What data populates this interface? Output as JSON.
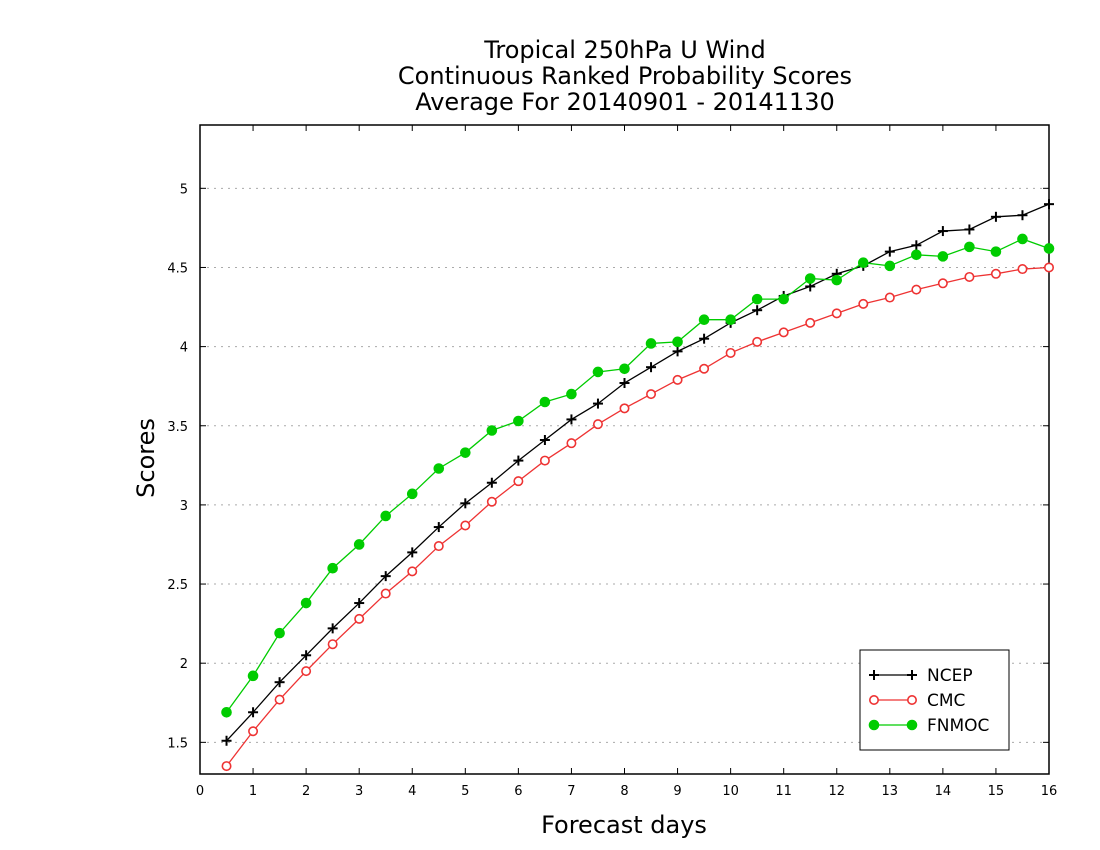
{
  "chart_data": {
    "type": "line",
    "title_lines": [
      "Tropical 250hPa U Wind",
      "Continuous Ranked Probability Scores",
      "Average For 20140901 - 20141130"
    ],
    "xlabel": "Forecast days",
    "ylabel": "Scores",
    "xlim": [
      0,
      16
    ],
    "ylim": [
      1.3,
      5.4
    ],
    "x_ticks": [
      0,
      1,
      2,
      3,
      4,
      5,
      6,
      7,
      8,
      9,
      10,
      11,
      12,
      13,
      14,
      15,
      16
    ],
    "y_ticks": [
      1.5,
      2,
      2.5,
      3,
      3.5,
      4,
      4.5,
      5
    ],
    "y_tick_labels": [
      "1.5",
      "2",
      "2.5",
      "3",
      "3.5",
      "4",
      "4.5",
      "5"
    ],
    "grid": "horizontal dotted",
    "legend_position": "bottom-right",
    "x": [
      0.5,
      1,
      1.5,
      2,
      2.5,
      3,
      3.5,
      4,
      4.5,
      5,
      5.5,
      6,
      6.5,
      7,
      7.5,
      8,
      8.5,
      9,
      9.5,
      10,
      10.5,
      11,
      11.5,
      12,
      12.5,
      13,
      13.5,
      14,
      14.5,
      15,
      15.5,
      16
    ],
    "series": [
      {
        "name": "NCEP",
        "color": "#000000",
        "marker": "plus",
        "values": [
          1.51,
          1.69,
          1.88,
          2.05,
          2.22,
          2.38,
          2.55,
          2.7,
          2.86,
          3.01,
          3.14,
          3.28,
          3.41,
          3.54,
          3.64,
          3.77,
          3.87,
          3.97,
          4.05,
          4.15,
          4.23,
          4.32,
          4.38,
          4.46,
          4.51,
          4.6,
          4.64,
          4.73,
          4.74,
          4.82,
          4.83,
          4.9
        ]
      },
      {
        "name": "CMC",
        "color": "#ee3333",
        "marker": "open-circle",
        "values": [
          1.35,
          1.57,
          1.77,
          1.95,
          2.12,
          2.28,
          2.44,
          2.58,
          2.74,
          2.87,
          3.02,
          3.15,
          3.28,
          3.39,
          3.51,
          3.61,
          3.7,
          3.79,
          3.86,
          3.96,
          4.03,
          4.09,
          4.15,
          4.21,
          4.27,
          4.31,
          4.36,
          4.4,
          4.44,
          4.46,
          4.49,
          4.5
        ]
      },
      {
        "name": "FNMOC",
        "color": "#00cc00",
        "marker": "filled-circle",
        "values": [
          1.69,
          1.92,
          2.19,
          2.38,
          2.6,
          2.75,
          2.93,
          3.07,
          3.23,
          3.33,
          3.47,
          3.53,
          3.65,
          3.7,
          3.84,
          3.86,
          4.02,
          4.03,
          4.17,
          4.17,
          4.3,
          4.3,
          4.43,
          4.42,
          4.53,
          4.51,
          4.58,
          4.57,
          4.63,
          4.6,
          4.68,
          4.62
        ]
      }
    ]
  }
}
